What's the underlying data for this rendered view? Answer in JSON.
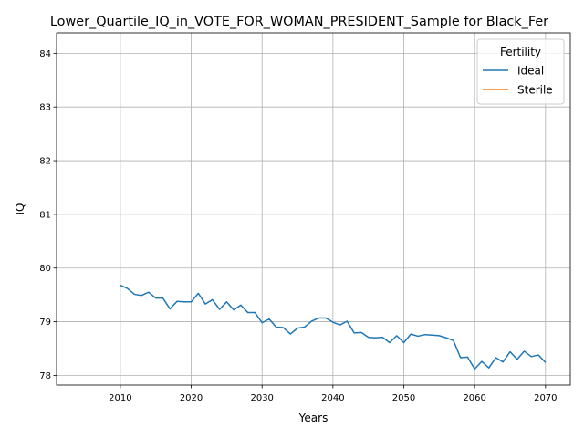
{
  "chart_data": {
    "type": "line",
    "title": "Lower_Quartile_IQ_in_VOTE_FOR_WOMAN_PRESIDENT_Sample for Black_Fer",
    "xlabel": "Years",
    "ylabel": "IQ",
    "xlim": [
      2001,
      2073.5
    ],
    "ylim": [
      77.82,
      84.38
    ],
    "xticks": [
      2010,
      2020,
      2030,
      2040,
      2050,
      2060,
      2070
    ],
    "yticks": [
      78,
      79,
      80,
      81,
      82,
      83,
      84
    ],
    "grid": true,
    "legend": {
      "title": "Fertility",
      "placement": "top-right"
    },
    "series": [
      {
        "name": "Ideal",
        "color": "#1f77b4",
        "x": [
          2010,
          2011,
          2012,
          2013,
          2014,
          2015,
          2016,
          2017,
          2018,
          2019,
          2020,
          2021,
          2022,
          2023,
          2024,
          2025,
          2026,
          2027,
          2028,
          2029,
          2030,
          2031,
          2032,
          2033,
          2034,
          2035,
          2036,
          2037,
          2038,
          2039,
          2040,
          2041,
          2042,
          2043,
          2044,
          2045,
          2046,
          2047,
          2048,
          2049,
          2050,
          2051,
          2052,
          2053,
          2054,
          2055,
          2056,
          2057,
          2058,
          2059,
          2060,
          2061,
          2062,
          2063,
          2064,
          2065,
          2066,
          2067,
          2068,
          2069,
          2070
        ],
        "y": [
          79.68,
          79.62,
          79.51,
          79.49,
          79.55,
          79.44,
          79.44,
          79.24,
          79.38,
          79.37,
          79.37,
          79.53,
          79.33,
          79.41,
          79.23,
          79.37,
          79.22,
          79.31,
          79.17,
          79.17,
          78.98,
          79.05,
          78.9,
          78.89,
          78.77,
          78.88,
          78.9,
          79.01,
          79.07,
          79.07,
          78.99,
          78.94,
          79.01,
          78.79,
          78.8,
          78.71,
          78.7,
          78.71,
          78.61,
          78.74,
          78.61,
          78.77,
          78.73,
          78.76,
          78.75,
          78.74,
          78.7,
          78.65,
          78.33,
          78.34,
          78.12,
          78.26,
          78.14,
          78.33,
          78.25,
          78.44,
          78.3,
          78.45,
          78.35,
          78.38,
          78.24
        ]
      },
      {
        "name": "Sterile",
        "color": "#ff7f0e",
        "x": [],
        "y": []
      }
    ]
  }
}
